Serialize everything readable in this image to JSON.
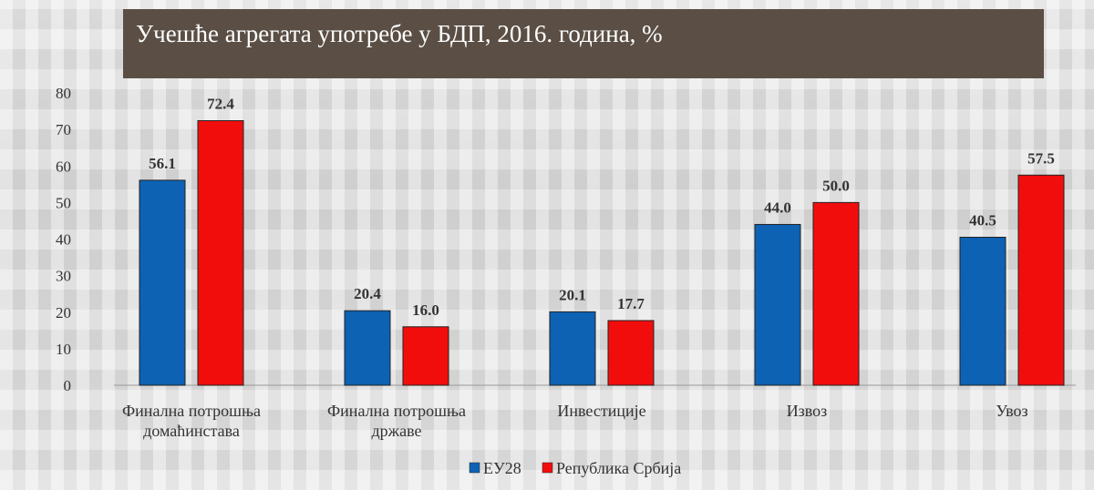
{
  "chart_data": {
    "type": "bar",
    "title": "Учешће агрегата употребе у БДП, 2016. година, %",
    "categories": [
      [
        "Финална потрошња",
        "домаћинстава"
      ],
      [
        "Финална потрошња",
        "државе"
      ],
      [
        "Инвестиције"
      ],
      [
        "Извоз"
      ],
      [
        "Увоз"
      ]
    ],
    "series": [
      {
        "name": "ЕУ28",
        "color": "#0d62b4",
        "values": [
          56.1,
          20.4,
          20.1,
          44.0,
          40.5
        ],
        "labels": [
          "56.1",
          "20.4",
          "20.1",
          "44.0",
          "40.5"
        ]
      },
      {
        "name": "Република Србија",
        "color": "#f20d0d",
        "values": [
          72.4,
          16.0,
          17.7,
          50.0,
          57.5
        ],
        "labels": [
          "72.4",
          "16.0",
          "17.7",
          "50.0",
          "57.5"
        ]
      }
    ],
    "ylim": [
      0,
      80
    ],
    "yticks": [
      0,
      10,
      20,
      30,
      40,
      50,
      60,
      70,
      80
    ],
    "grid": false,
    "legend": "bottom-center"
  }
}
